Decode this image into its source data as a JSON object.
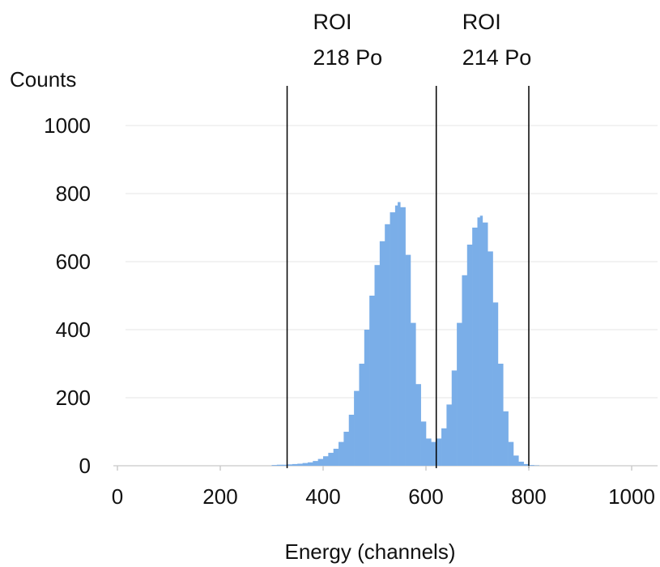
{
  "chart_data": {
    "type": "bar",
    "title": "",
    "xlabel": "Energy (channels)",
    "ylabel": "Counts",
    "xlim": [
      0,
      1000
    ],
    "ylim": [
      0,
      1000
    ],
    "x_ticks": [
      0,
      200,
      400,
      600,
      800,
      1000
    ],
    "y_ticks": [
      0,
      200,
      400,
      600,
      800,
      1000
    ],
    "grid": "horizontal",
    "legend": "none",
    "colors": {
      "bars": "#7aaee8",
      "grid": "#eeeeee",
      "markers": "#000000"
    },
    "series": [
      {
        "x": [
          300,
          310,
          320,
          330,
          340,
          350,
          360,
          370,
          380,
          390,
          400,
          410,
          420,
          430,
          440,
          450,
          460,
          470,
          480,
          490,
          500,
          510,
          520,
          530,
          540,
          545,
          550,
          560,
          570,
          580,
          590,
          600,
          610,
          620,
          630,
          640,
          650,
          660,
          670,
          680,
          690,
          700,
          705,
          710,
          720,
          730,
          740,
          750,
          760,
          770,
          780,
          790,
          800,
          810,
          820
        ],
        "values": [
          2,
          3,
          3,
          4,
          5,
          6,
          8,
          10,
          14,
          20,
          28,
          38,
          50,
          70,
          100,
          150,
          220,
          300,
          400,
          500,
          590,
          660,
          710,
          745,
          765,
          775,
          760,
          620,
          420,
          240,
          130,
          80,
          70,
          80,
          110,
          180,
          280,
          420,
          560,
          650,
          700,
          730,
          735,
          715,
          630,
          480,
          300,
          160,
          70,
          30,
          12,
          5,
          2,
          1,
          0
        ]
      }
    ],
    "roi_markers": [
      {
        "x": 330,
        "label_line1": "ROI",
        "label_line2": "218 Po"
      },
      {
        "x": 620,
        "label_line1": "ROI",
        "label_line2": "214 Po"
      },
      {
        "x": 800
      }
    ]
  }
}
